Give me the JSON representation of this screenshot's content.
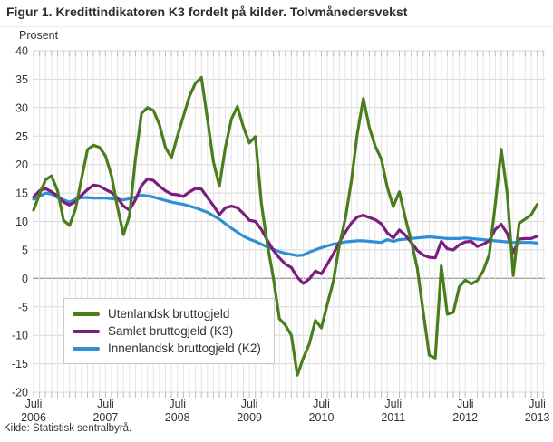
{
  "title": "Figur 1. Kredittindikatoren K3 fordelt på kilder. Tolvmånedersvekst",
  "unit_label": "Prosent",
  "source": "Kilde: Statistisk sentralbyrå.",
  "colors": {
    "grid_horizontal": "#d8d8d8",
    "grid_vertical": "#e4e4e4",
    "zero_line": "#9e9e9e",
    "tick": "#bdbdbd",
    "text": "#333333"
  },
  "chart_data": {
    "type": "line",
    "title": "Figur 1. Kredittindikatoren K3 fordelt på kilder. Tolvmånedersvekst",
    "ylabel": "Prosent",
    "ylim": [
      -20,
      40
    ],
    "ytick_step": 5,
    "grid": true,
    "legend_position": "inside-left-middle",
    "x_unit": "monthly points from Juli 2006 to Juli 2013",
    "x_ticks": [
      {
        "index": 0,
        "line1": "Juli",
        "line2": "2006"
      },
      {
        "index": 12,
        "line1": "Juli",
        "line2": "2007"
      },
      {
        "index": 24,
        "line1": "Juli",
        "line2": "2008"
      },
      {
        "index": 36,
        "line1": "Juli",
        "line2": "2009"
      },
      {
        "index": 48,
        "line1": "Juli",
        "line2": "2010"
      },
      {
        "index": 60,
        "line1": "Juli",
        "line2": "2011"
      },
      {
        "index": 72,
        "line1": "Juli",
        "line2": "2012"
      },
      {
        "index": 84,
        "line1": "Juli",
        "line2": "2013"
      }
    ],
    "series": [
      {
        "name": "Utenlandsk bruttogjeld",
        "key": "utenlandsk-bruttogjeld",
        "color": "#4a7e1d",
        "values": [
          12.0,
          14.8,
          17.3,
          18.0,
          15.4,
          10.2,
          9.3,
          12.2,
          17.5,
          22.6,
          23.4,
          23.0,
          21.5,
          18.0,
          12.5,
          7.7,
          11.0,
          21.0,
          29.0,
          30.0,
          29.5,
          27.0,
          23.0,
          21.2,
          25.0,
          28.5,
          32.0,
          34.3,
          35.3,
          28.0,
          20.5,
          16.2,
          23.0,
          28.0,
          30.2,
          26.6,
          23.8,
          24.9,
          13.2,
          6.0,
          0.0,
          -7.1,
          -8.2,
          -10.0,
          -17.0,
          -14.0,
          -11.5,
          -7.4,
          -8.7,
          -4.5,
          -0.5,
          5.8,
          10.5,
          17.0,
          25.5,
          31.6,
          26.5,
          23.2,
          21.0,
          16.0,
          12.6,
          15.2,
          10.6,
          6.5,
          1.8,
          -6.0,
          -13.5,
          -14.0,
          2.2,
          -6.3,
          -6.0,
          -1.5,
          -0.3,
          -1.0,
          -0.4,
          1.3,
          4.2,
          13.0,
          22.7,
          15.0,
          0.5,
          9.7,
          10.4,
          11.2,
          13.0
        ]
      },
      {
        "name": "Samlet bruttogjeld (K3)",
        "key": "samlet-bruttogjeld-k3",
        "color": "#7a1d7e",
        "values": [
          14.3,
          15.4,
          15.8,
          15.2,
          14.5,
          13.4,
          12.9,
          13.5,
          14.6,
          15.6,
          16.4,
          16.2,
          15.6,
          15.1,
          14.1,
          12.7,
          12.0,
          13.8,
          16.3,
          17.5,
          17.2,
          16.2,
          15.4,
          14.8,
          14.7,
          14.4,
          15.2,
          15.8,
          15.7,
          14.2,
          12.8,
          11.2,
          12.4,
          12.7,
          12.4,
          11.4,
          10.2,
          10.0,
          8.6,
          6.7,
          4.9,
          3.6,
          2.5,
          1.9,
          0.2,
          -0.9,
          -0.1,
          1.3,
          0.8,
          2.5,
          4.3,
          6.3,
          8.1,
          9.7,
          10.8,
          11.1,
          10.7,
          10.3,
          9.6,
          8.0,
          7.1,
          8.5,
          7.6,
          6.3,
          4.9,
          4.1,
          3.7,
          3.6,
          6.5,
          5.2,
          5.0,
          5.9,
          6.4,
          6.5,
          5.6,
          6.0,
          6.6,
          8.6,
          9.5,
          7.9,
          4.5,
          6.9,
          7.0,
          7.0,
          7.4
        ]
      },
      {
        "name": "Innenlandsk bruttogjeld (K2)",
        "key": "innenlandsk-bruttogjeld-k2",
        "color": "#2e8fd8",
        "values": [
          13.9,
          14.4,
          15.0,
          14.8,
          14.2,
          13.8,
          13.4,
          13.9,
          14.2,
          14.2,
          14.1,
          14.1,
          14.1,
          14.0,
          13.9,
          13.8,
          14.0,
          14.3,
          14.6,
          14.5,
          14.3,
          14.0,
          13.7,
          13.4,
          13.2,
          13.0,
          12.7,
          12.4,
          12.0,
          11.6,
          11.0,
          10.4,
          9.6,
          8.8,
          8.1,
          7.4,
          6.9,
          6.5,
          6.0,
          5.5,
          5.1,
          4.7,
          4.4,
          4.2,
          4.0,
          4.1,
          4.6,
          5.0,
          5.4,
          5.7,
          6.0,
          6.2,
          6.4,
          6.5,
          6.6,
          6.6,
          6.5,
          6.4,
          6.3,
          6.8,
          6.5,
          6.8,
          6.9,
          7.0,
          7.1,
          7.2,
          7.3,
          7.2,
          7.1,
          7.0,
          7.0,
          7.0,
          7.1,
          7.0,
          6.9,
          6.8,
          6.7,
          6.6,
          6.5,
          6.4,
          6.3,
          6.3,
          6.3,
          6.3,
          6.2
        ]
      }
    ]
  }
}
